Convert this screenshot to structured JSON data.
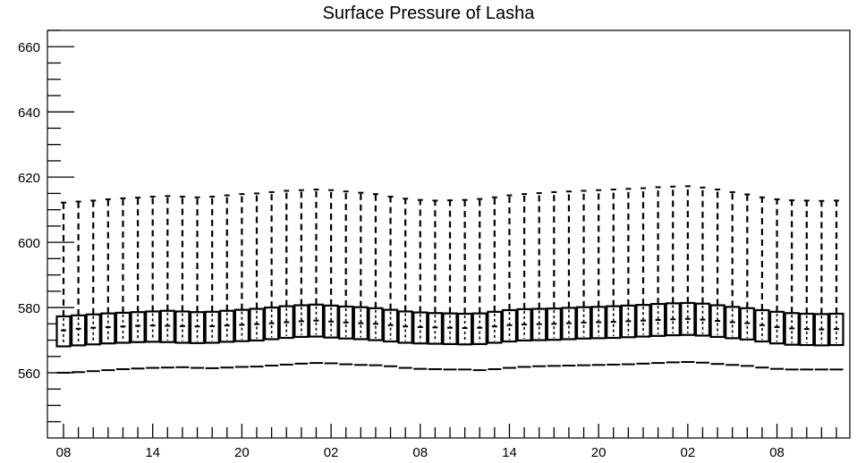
{
  "chart_data": {
    "type": "box",
    "title": "Surface Pressure of Lasha",
    "xlabel": "",
    "ylabel": "",
    "ylim": [
      540,
      665
    ],
    "y_ticks": [
      560,
      580,
      600,
      620,
      640,
      660
    ],
    "x_tick_labels": [
      "08",
      "14",
      "20",
      "02",
      "08",
      "14",
      "20",
      "02",
      "08"
    ],
    "grid": false,
    "legend": "none",
    "time_step_hours": 1,
    "series": [
      {
        "q1": [
          568.1,
          568.4,
          568.7,
          569.0,
          569.2,
          569.4,
          569.5,
          569.4,
          569.2,
          569.1,
          569.2,
          569.5,
          569.7,
          569.9,
          570.3,
          570.7,
          571.0,
          571.1,
          570.8,
          570.5,
          570.3,
          570.0,
          569.6,
          569.2,
          569.0,
          568.9,
          568.8,
          568.7,
          568.8,
          569.2,
          569.6,
          569.9,
          570.0,
          570.1,
          570.3,
          570.5,
          570.6,
          570.7,
          570.9,
          571.1,
          571.3,
          571.5,
          571.6,
          571.4,
          571.0,
          570.6,
          570.2,
          569.6,
          569.0,
          568.6,
          568.5,
          568.4,
          568.5
        ],
        "median": [
          573.0,
          573.5,
          573.8,
          574.0,
          574.2,
          574.4,
          574.5,
          574.4,
          574.3,
          574.2,
          574.3,
          574.5,
          574.7,
          574.9,
          575.2,
          575.5,
          575.8,
          576.0,
          575.7,
          575.4,
          575.2,
          575.0,
          574.6,
          574.2,
          574.0,
          573.9,
          573.8,
          573.7,
          573.8,
          574.2,
          574.6,
          574.8,
          574.9,
          575.0,
          575.2,
          575.4,
          575.5,
          575.6,
          575.8,
          576.0,
          576.2,
          576.4,
          576.5,
          576.3,
          575.9,
          575.5,
          575.2,
          574.6,
          574.0,
          573.6,
          573.4,
          573.3,
          573.4
        ],
        "q3": [
          577.3,
          577.6,
          577.9,
          578.2,
          578.4,
          578.6,
          578.8,
          579.0,
          578.8,
          578.6,
          578.7,
          579.0,
          579.3,
          579.6,
          580.0,
          580.4,
          580.7,
          580.9,
          580.6,
          580.3,
          580.1,
          579.8,
          579.3,
          578.8,
          578.5,
          578.3,
          578.2,
          578.1,
          578.2,
          578.7,
          579.2,
          579.5,
          579.6,
          579.7,
          579.9,
          580.1,
          580.2,
          580.4,
          580.6,
          580.8,
          581.1,
          581.3,
          581.4,
          581.2,
          580.7,
          580.2,
          579.8,
          579.2,
          578.7,
          578.3,
          578.1,
          578.0,
          578.1
        ],
        "whisker_low": [
          560.0,
          560.2,
          560.5,
          560.8,
          561.1,
          561.3,
          561.5,
          561.6,
          561.7,
          561.5,
          561.4,
          561.6,
          561.8,
          561.9,
          562.2,
          562.5,
          562.8,
          563.0,
          562.9,
          562.6,
          562.4,
          562.3,
          562.0,
          561.5,
          561.2,
          561.1,
          561.0,
          561.0,
          560.8,
          561.1,
          561.5,
          561.8,
          562.0,
          562.1,
          562.2,
          562.3,
          562.4,
          562.5,
          562.6,
          562.8,
          563.0,
          563.2,
          563.3,
          563.1,
          562.7,
          562.4,
          562.1,
          561.6,
          561.2,
          561.0,
          561.0,
          561.0,
          561.0
        ],
        "whisker_high": [
          612.2,
          612.5,
          612.8,
          613.2,
          613.5,
          613.7,
          614.0,
          614.2,
          614.0,
          613.8,
          614.0,
          614.4,
          614.8,
          615.0,
          615.4,
          615.8,
          616.0,
          616.2,
          616.0,
          615.6,
          615.2,
          614.8,
          614.0,
          613.4,
          613.0,
          612.8,
          612.9,
          613.0,
          613.3,
          613.8,
          614.4,
          614.8,
          615.1,
          615.4,
          615.6,
          615.8,
          616.0,
          616.2,
          616.4,
          616.6,
          616.9,
          617.1,
          617.2,
          616.8,
          616.2,
          615.4,
          614.7,
          613.8,
          613.2,
          612.9,
          612.8,
          612.7,
          612.8
        ]
      }
    ]
  }
}
